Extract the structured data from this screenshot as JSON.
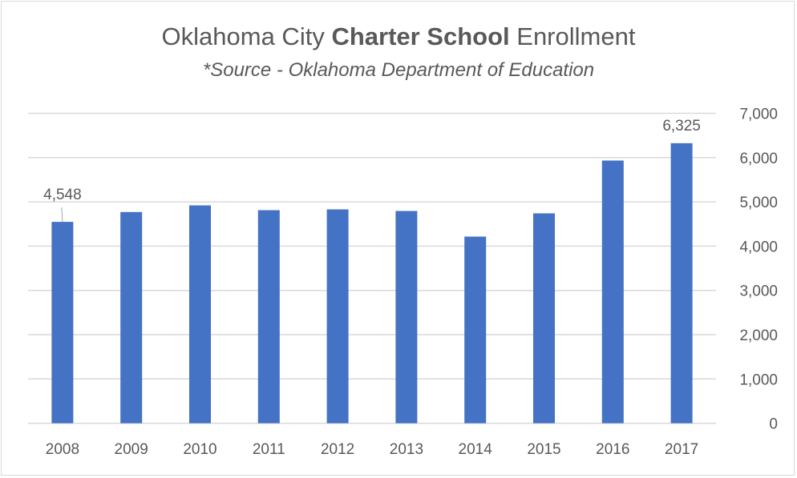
{
  "chart_data": {
    "type": "bar",
    "title_parts": {
      "pre": "Oklahoma City ",
      "bold": "Charter School",
      "post": " Enrollment"
    },
    "subtitle": "*Source - Oklahoma Department of Education",
    "categories": [
      "2008",
      "2009",
      "2010",
      "2011",
      "2012",
      "2013",
      "2014",
      "2015",
      "2016",
      "2017"
    ],
    "values": [
      4548,
      4770,
      4920,
      4812,
      4830,
      4794,
      4215,
      4740,
      5933,
      6325
    ],
    "data_labels": {
      "0": "4,548",
      "9": "6,325"
    },
    "ylim": [
      0,
      7000
    ],
    "yticks": [
      0,
      1000,
      2000,
      3000,
      4000,
      5000,
      6000,
      7000
    ],
    "ytick_labels": [
      "0",
      "1,000",
      "2,000",
      "3,000",
      "4,000",
      "5,000",
      "6,000",
      "7,000"
    ],
    "y_axis_position": "right",
    "grid": true,
    "bar_color": "#4472c4",
    "grid_color": "#d9d9d9"
  }
}
